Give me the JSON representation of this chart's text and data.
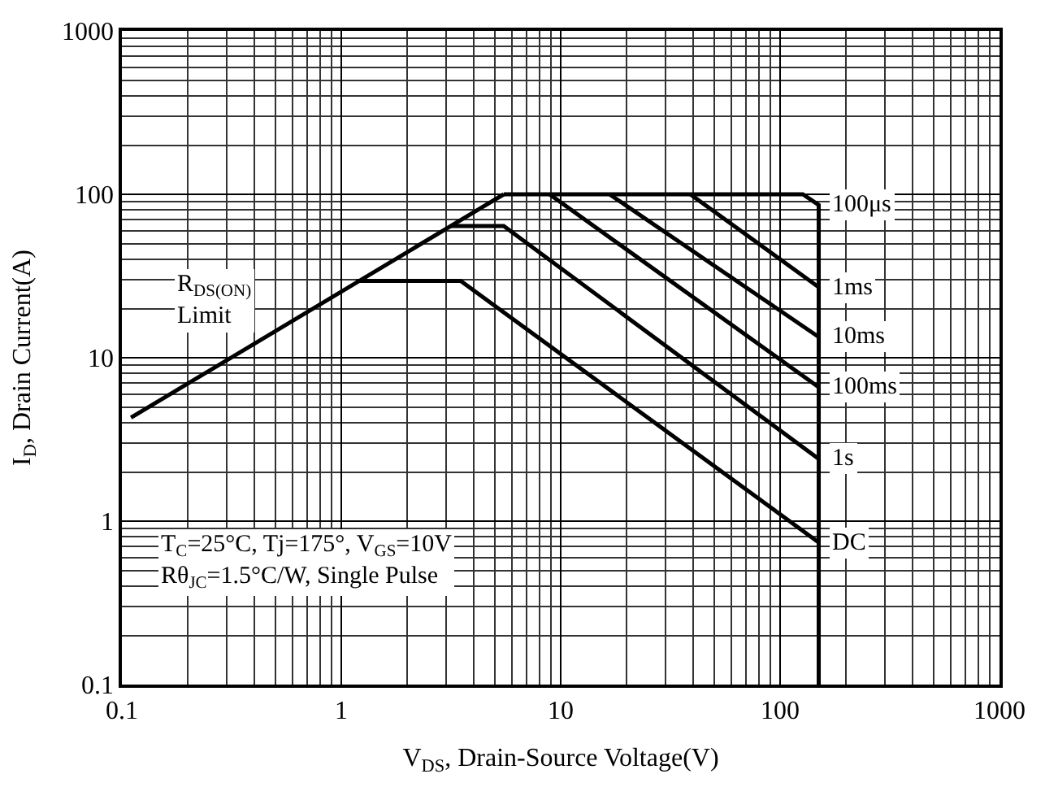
{
  "chart_data": {
    "type": "line",
    "xlabel": "V$_{DS}$, Drain-Source Voltage(V)",
    "ylabel": "I$_{D}$, Drain Current(A)",
    "log": "xy",
    "xlim": [
      0.1,
      1000
    ],
    "xticks": [
      0.1,
      1,
      10,
      100,
      1000
    ],
    "ylim": [
      0.1,
      1000
    ],
    "yticks": [
      0.1,
      1,
      10,
      100,
      1000
    ],
    "grid": true,
    "legend": false,
    "series": [
      {
        "name": "R$_{DS(ON)}$ Limit",
        "color": "#000000",
        "x": [
          0.11,
          5.5
        ],
        "values": [
          4.3,
          100
        ]
      },
      {
        "name": "100μs",
        "color": "#000000",
        "x": [
          5.5,
          127,
          150,
          150
        ],
        "values": [
          100,
          100,
          86,
          0.1
        ]
      },
      {
        "name": "1ms",
        "color": "#000000",
        "x": [
          39,
          150
        ],
        "values": [
          100,
          27
        ]
      },
      {
        "name": "10ms",
        "color": "#000000",
        "x": [
          16.7,
          150
        ],
        "values": [
          100,
          13.4
        ]
      },
      {
        "name": "100ms",
        "color": "#000000",
        "x": [
          8.9,
          150
        ],
        "values": [
          100,
          6.6
        ]
      },
      {
        "name": "1s",
        "color": "#000000",
        "x": [
          3.15,
          5.5,
          150
        ],
        "values": [
          64,
          64,
          2.4
        ]
      },
      {
        "name": "DC",
        "color": "#000000",
        "x": [
          1.17,
          3.5,
          150
        ],
        "values": [
          29.5,
          29.5,
          0.74
        ]
      }
    ],
    "annotations": [
      "T$_{C}$=25°C, Tj=175°, V$_{GS}$=10V",
      "Rθ$_{JC}$=1.5°C/W, Single Pulse"
    ]
  }
}
